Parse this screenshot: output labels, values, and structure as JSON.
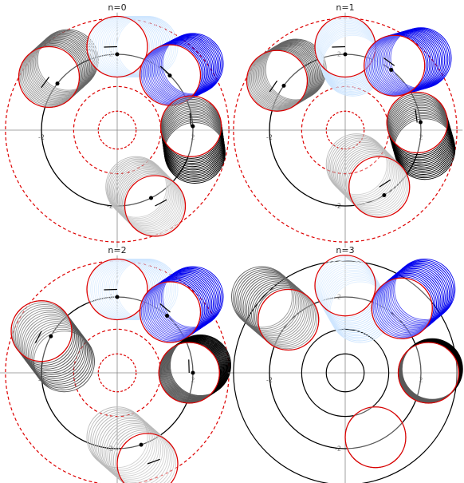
{
  "chart_data": [
    {
      "type": "circles",
      "title": "n=0",
      "xlim": [
        -3.1,
        3.1
      ],
      "ylim": [
        -3.1,
        3.1
      ],
      "xticks": [
        -2,
        2
      ],
      "yticks": [
        -2,
        2
      ]
    },
    {
      "type": "circles",
      "title": "n=1",
      "xlim": [
        -3.1,
        3.1
      ],
      "ylim": [
        -3.1,
        3.1
      ],
      "xticks": [
        -2,
        2
      ],
      "yticks": [
        -2,
        2
      ]
    },
    {
      "type": "circles",
      "title": "n=2",
      "xlim": [
        -3.1,
        3.1
      ],
      "ylim": [
        -3.1,
        3.1
      ],
      "xticks": [
        -2,
        2
      ],
      "yticks": [
        -2,
        2
      ]
    },
    {
      "type": "circles",
      "title": "n=3",
      "xlim": [
        -3.1,
        3.1
      ],
      "ylim": [
        -3.1,
        3.1
      ],
      "xticks": [
        -2,
        2
      ],
      "yticks": [
        -2,
        2
      ]
    }
  ]
}
